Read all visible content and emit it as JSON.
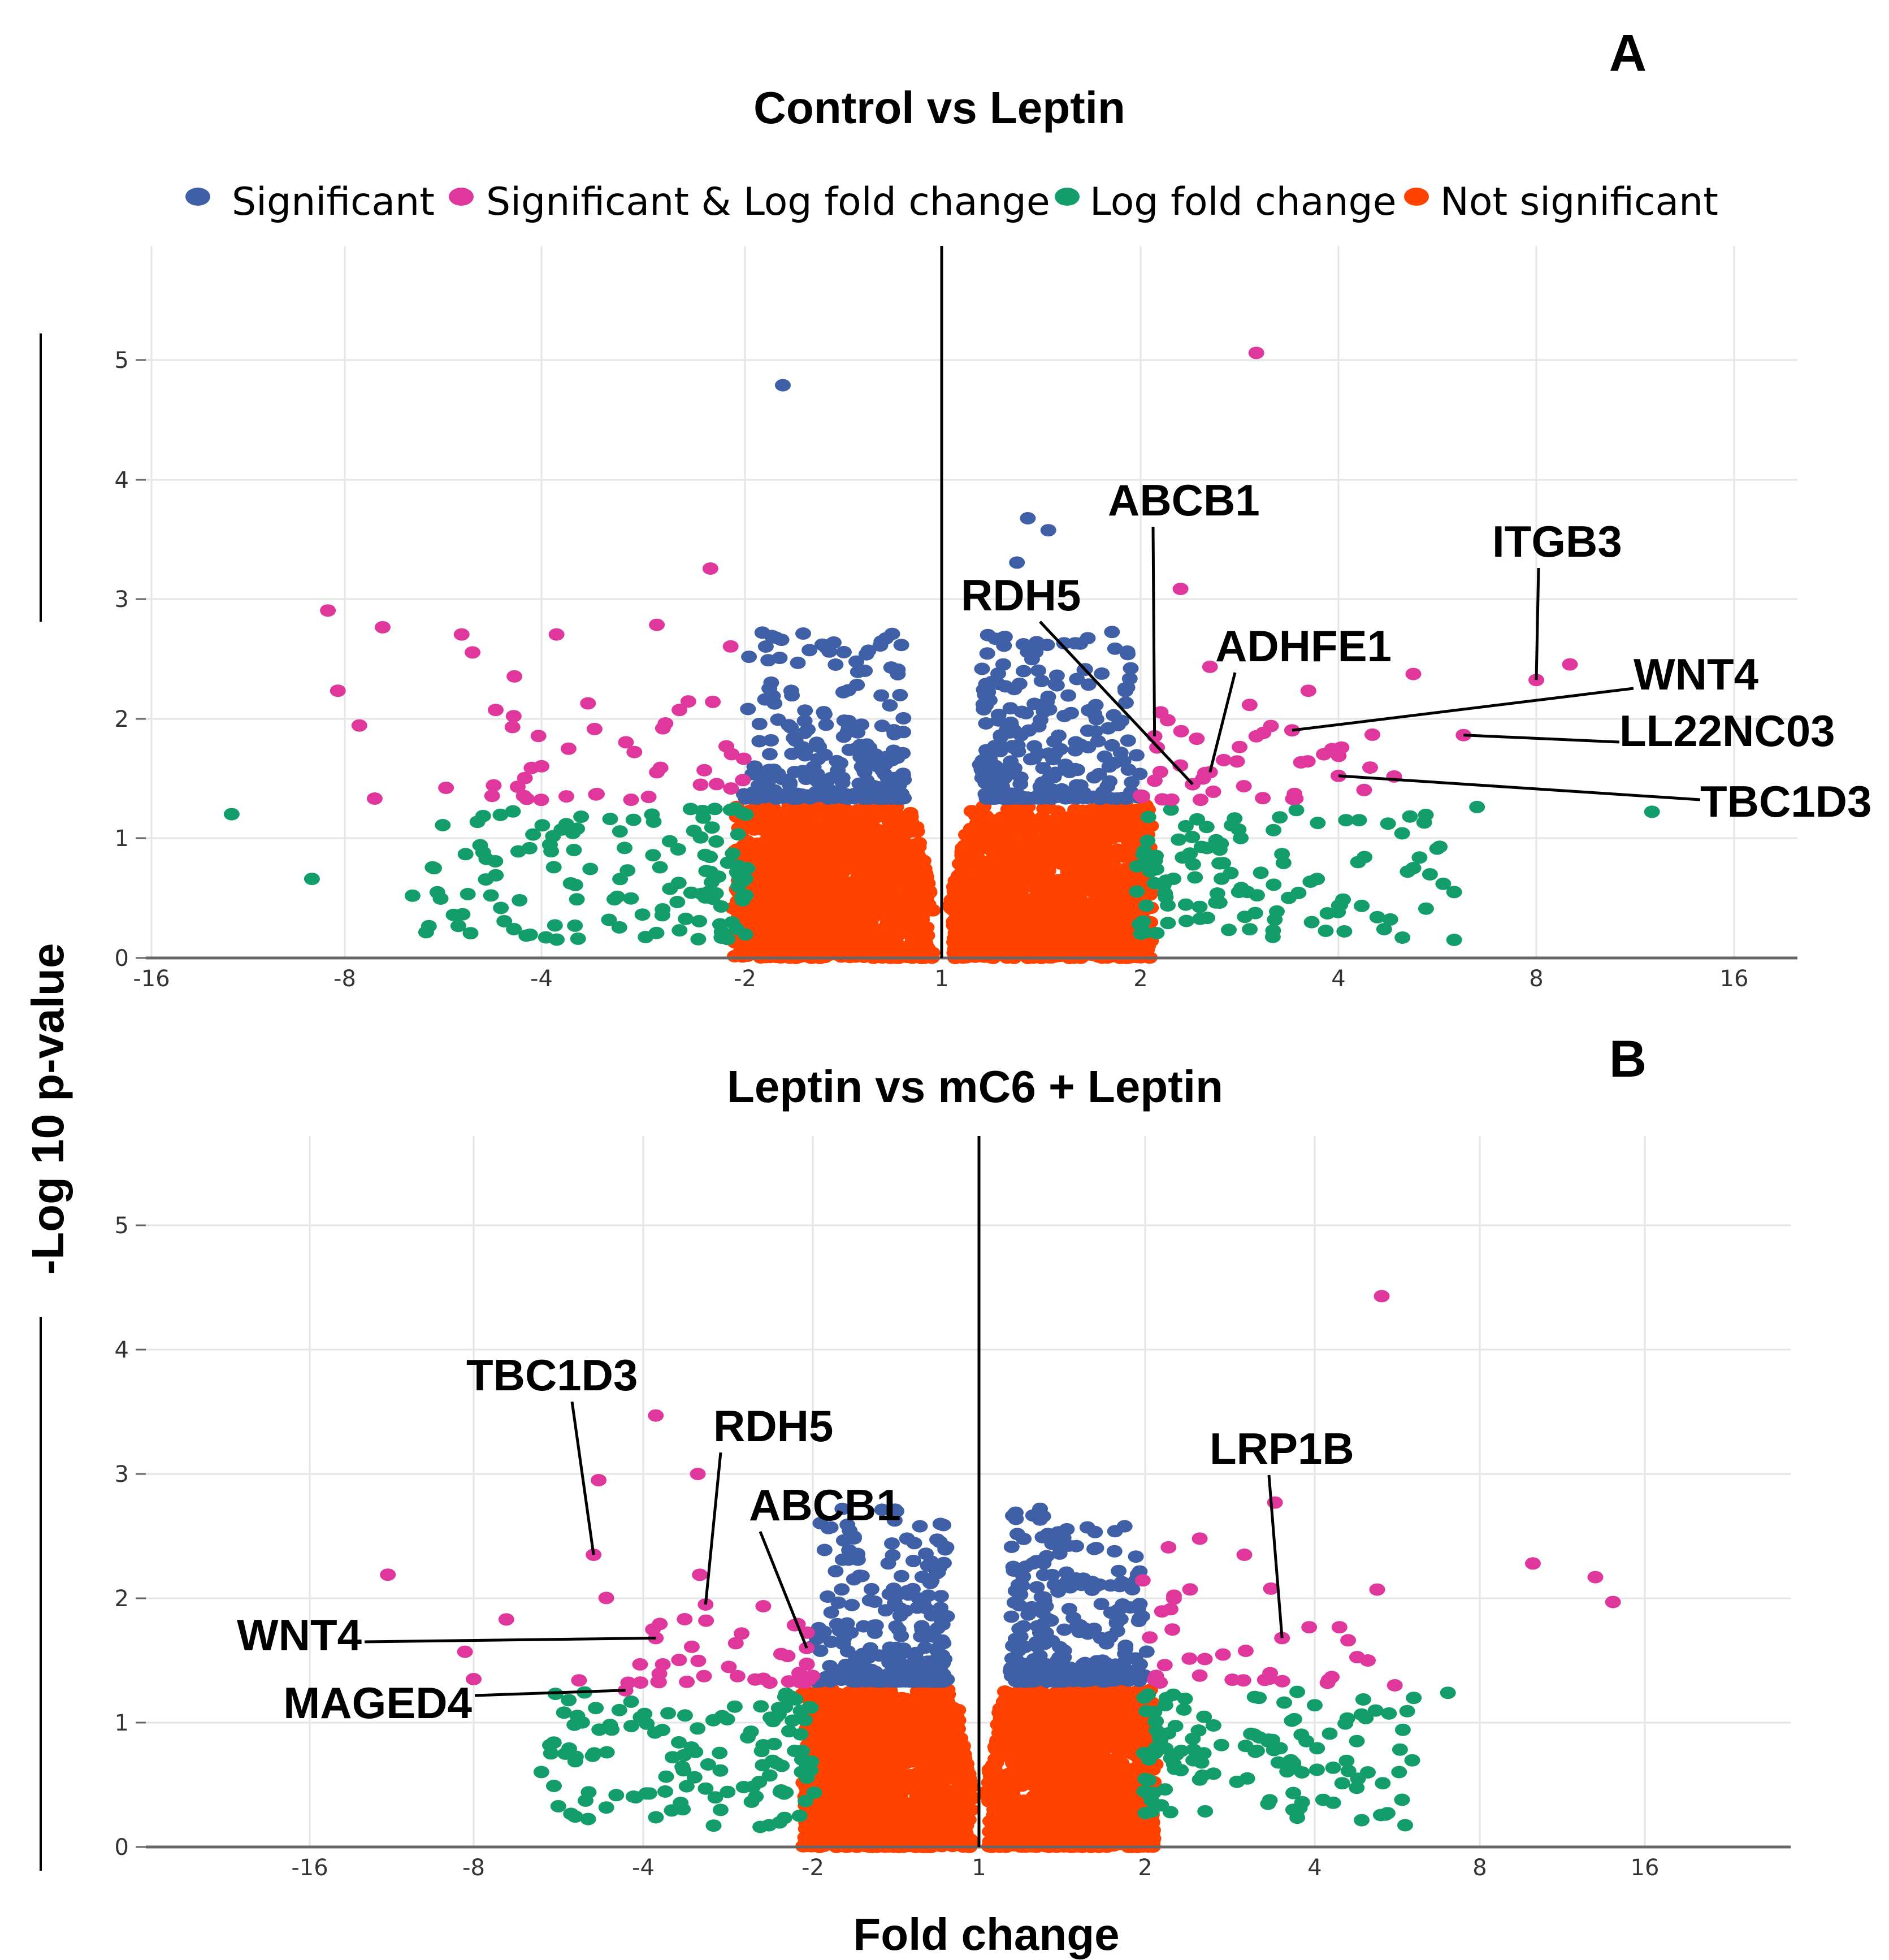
{
  "figure": {
    "y_axis_title": "-Log 10 p-value",
    "x_axis_title": "Fold change"
  },
  "legend": {
    "items": [
      {
        "label": "Significant",
        "color": "#3f5fa6"
      },
      {
        "label": "Significant & Log fold change",
        "color": "#e0379d"
      },
      {
        "label": "Log fold change",
        "color": "#139d6b"
      },
      {
        "label": "Not significant",
        "color": "#ff4200"
      }
    ]
  },
  "chart_data": [
    {
      "panel": "A",
      "type": "scatter",
      "title": "Control vs Leptin",
      "xlabel": "Fold change",
      "ylabel": "-Log 10 p-value",
      "x_scale": "log2",
      "x_ticks": [
        "-16",
        "-8",
        "-4",
        "-2",
        "1",
        "2",
        "4",
        "8",
        "16"
      ],
      "y_ticks": [
        "0",
        "1",
        "2",
        "3",
        "4",
        "5"
      ],
      "ylim": [
        0,
        5.8
      ],
      "thresholds": {
        "fold_change": 2,
        "neg_log10_p": 1.3
      },
      "labeled_genes": [
        {
          "gene": "ABCB1",
          "x": 2.1,
          "y": 1.85
        },
        {
          "gene": "RDH5",
          "x": 2.4,
          "y": 1.45
        },
        {
          "gene": "ADHFE1",
          "x": 2.55,
          "y": 1.55
        },
        {
          "gene": "ITGB3",
          "x": 8,
          "y": 2.32
        },
        {
          "gene": "WNT4",
          "x": 3.4,
          "y": 1.9
        },
        {
          "gene": "LL22NC03",
          "x": 6.2,
          "y": 1.86
        },
        {
          "gene": "TBC1D3",
          "x": 4.0,
          "y": 1.52
        }
      ],
      "highlighted_points": [
        {
          "x": 3.0,
          "y": 5.05,
          "group": "Significant & Log fold change"
        },
        {
          "x": -1.75,
          "y": 4.78,
          "group": "Significant"
        },
        {
          "x": 1.35,
          "y": 3.67,
          "group": "Significant"
        },
        {
          "x": 1.45,
          "y": 3.57,
          "group": "Significant"
        },
        {
          "x": 1.3,
          "y": 3.3,
          "group": "Significant"
        },
        {
          "x": -2.25,
          "y": 3.25,
          "group": "Significant & Log fold change"
        },
        {
          "x": 2.3,
          "y": 3.08,
          "group": "Significant & Log fold change"
        },
        {
          "x": -8.5,
          "y": 2.9,
          "group": "Significant & Log fold change"
        },
        {
          "x": -2.7,
          "y": 2.78,
          "group": "Significant & Log fold change"
        },
        {
          "x": -7.0,
          "y": 2.76,
          "group": "Significant & Log fold change"
        },
        {
          "x": -5.3,
          "y": 2.7,
          "group": "Significant & Log fold change"
        },
        {
          "x": -3.8,
          "y": 2.7,
          "group": "Significant & Log fold change"
        },
        {
          "x": -2.1,
          "y": 2.6,
          "group": "Significant & Log fold change"
        },
        {
          "x": -5.1,
          "y": 2.55,
          "group": "Significant & Log fold change"
        },
        {
          "x": 9.0,
          "y": 2.45,
          "group": "Significant & Log fold change"
        },
        {
          "x": 2.55,
          "y": 2.43,
          "group": "Significant & Log fold change"
        },
        {
          "x": 5.2,
          "y": 2.37,
          "group": "Significant & Log fold change"
        },
        {
          "x": -4.4,
          "y": 2.35,
          "group": "Significant & Log fold change"
        },
        {
          "x": -8.2,
          "y": 2.23,
          "group": "Significant & Log fold change"
        },
        {
          "x": 3.6,
          "y": 2.23,
          "group": "Significant & Log fold change"
        },
        {
          "x": 1.9,
          "y": 2.13,
          "group": "Significant"
        },
        {
          "x": -2.5,
          "y": 2.07,
          "group": "Significant & Log fold change"
        },
        {
          "x": -4.7,
          "y": 2.07,
          "group": "Significant & Log fold change"
        },
        {
          "x": -7.6,
          "y": 1.94,
          "group": "Significant & Log fold change"
        },
        {
          "x": 3.0,
          "y": 1.85,
          "group": "Significant & Log fold change"
        },
        {
          "x": -3.0,
          "y": 1.8,
          "group": "Significant & Log fold change"
        },
        {
          "x": 3.8,
          "y": 1.7,
          "group": "Significant & Log fold change"
        },
        {
          "x": -4.0,
          "y": 1.6,
          "group": "Significant & Log fold change"
        },
        {
          "x": -2.7,
          "y": 1.55,
          "group": "Significant & Log fold change"
        },
        {
          "x": -5.6,
          "y": 1.42,
          "group": "Significant & Log fold change"
        },
        {
          "x": -7.2,
          "y": 1.33,
          "group": "Significant & Log fold change"
        },
        {
          "x": -12.0,
          "y": 1.2,
          "group": "Log fold change"
        },
        {
          "x": 12.0,
          "y": 1.22,
          "group": "Log fold change"
        },
        {
          "x": 6.5,
          "y": 1.26,
          "group": "Log fold change"
        },
        {
          "x": 5.0,
          "y": 1.04,
          "group": "Log fold change"
        },
        {
          "x": 4.3,
          "y": 1.15,
          "group": "Log fold change"
        },
        {
          "x": -9.0,
          "y": 0.66,
          "group": "Log fold change"
        },
        {
          "x": -6.3,
          "y": 0.52,
          "group": "Log fold change"
        },
        {
          "x": 6.0,
          "y": 0.55,
          "group": "Log fold change"
        },
        {
          "x": 3.2,
          "y": 0.32,
          "group": "Log fold change"
        }
      ]
    },
    {
      "panel": "B",
      "type": "scatter",
      "title": "Leptin vs mC6 + Leptin",
      "xlabel": "Fold change",
      "ylabel": "-Log 10 p-value",
      "x_scale": "log2",
      "x_ticks": [
        "-16",
        "-8",
        "-4",
        "-2",
        "1",
        "2",
        "4",
        "8",
        "16"
      ],
      "y_ticks": [
        "0",
        "1",
        "2",
        "3",
        "4",
        "5"
      ],
      "ylim": [
        0,
        5.8
      ],
      "thresholds": {
        "fold_change": 2,
        "neg_log10_p": 1.3
      },
      "labeled_genes": [
        {
          "gene": "TBC1D3",
          "x": -4.9,
          "y": 2.35
        },
        {
          "gene": "RDH5",
          "x": -3.1,
          "y": 1.95
        },
        {
          "gene": "ABCB1",
          "x": -2.05,
          "y": 1.6
        },
        {
          "gene": "LRP1B",
          "x": 3.5,
          "y": 1.68
        },
        {
          "gene": "WNT4",
          "x": -3.8,
          "y": 1.68
        },
        {
          "gene": "MAGED4",
          "x": -4.3,
          "y": 1.26
        }
      ],
      "highlighted_points": [
        {
          "x": 5.3,
          "y": 4.43,
          "group": "Significant & Log fold change"
        },
        {
          "x": -3.8,
          "y": 3.47,
          "group": "Significant & Log fold change"
        },
        {
          "x": -3.2,
          "y": 3.0,
          "group": "Significant & Log fold change"
        },
        {
          "x": -4.8,
          "y": 2.95,
          "group": "Significant & Log fold change"
        },
        {
          "x": 3.4,
          "y": 2.77,
          "group": "Significant & Log fold change"
        },
        {
          "x": 2.5,
          "y": 2.48,
          "group": "Significant & Log fold change"
        },
        {
          "x": 1.5,
          "y": 2.42,
          "group": "Significant"
        },
        {
          "x": -1.35,
          "y": 2.48,
          "group": "Significant"
        },
        {
          "x": 2.2,
          "y": 2.41,
          "group": "Significant & Log fold change"
        },
        {
          "x": 3.0,
          "y": 2.35,
          "group": "Significant & Log fold change"
        },
        {
          "x": 10.0,
          "y": 2.28,
          "group": "Significant & Log fold change"
        },
        {
          "x": 13.0,
          "y": 2.17,
          "group": "Significant & Log fold change"
        },
        {
          "x": -11.5,
          "y": 2.19,
          "group": "Significant & Log fold change"
        },
        {
          "x": 5.2,
          "y": 2.07,
          "group": "Significant & Log fold change"
        },
        {
          "x": 14.0,
          "y": 1.97,
          "group": "Significant & Log fold change"
        },
        {
          "x": -7.0,
          "y": 1.83,
          "group": "Significant & Log fold change"
        },
        {
          "x": -8.3,
          "y": 1.57,
          "group": "Significant & Log fold change"
        },
        {
          "x": -8.0,
          "y": 1.35,
          "group": "Significant & Log fold change"
        },
        {
          "x": -5.2,
          "y": 1.34,
          "group": "Significant & Log fold change"
        },
        {
          "x": 5.0,
          "y": 1.5,
          "group": "Significant & Log fold change"
        },
        {
          "x": 5.6,
          "y": 1.3,
          "group": "Significant & Log fold change"
        },
        {
          "x": 7.0,
          "y": 1.24,
          "group": "Log fold change"
        },
        {
          "x": 5.0,
          "y": 0.6,
          "group": "Log fold change"
        },
        {
          "x": 4.0,
          "y": 1.14,
          "group": "Log fold change"
        },
        {
          "x": -5.5,
          "y": 0.75,
          "group": "Log fold change"
        },
        {
          "x": -5.0,
          "y": 0.44,
          "group": "Log fold change"
        },
        {
          "x": 3.8,
          "y": 0.36,
          "group": "Log fold change"
        }
      ]
    }
  ]
}
